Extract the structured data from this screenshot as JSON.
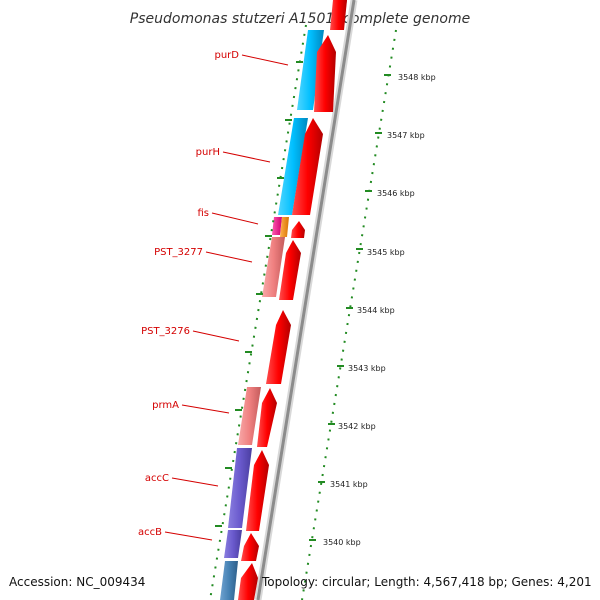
{
  "header": {
    "title": "Pseudomonas stutzeri A1501, complete genome"
  },
  "footer": {
    "accession": "Accession: NC_009434",
    "topology": "Topology: circular; Length: 4,567,418 bp; Genes: 4,201"
  },
  "scale": {
    "labels": [
      "3548 kbp",
      "3547 kbp",
      "3546 kbp",
      "3545 kbp",
      "3544 kbp",
      "3543 kbp",
      "3542 kbp",
      "3541 kbp",
      "3540 kbp"
    ]
  },
  "genes": {
    "labels": [
      "purD",
      "purH",
      "fis",
      "PST_3277",
      "PST_3276",
      "prmA",
      "accC",
      "accB"
    ]
  },
  "colors": {
    "cds_red": "#ff0000",
    "purine_blue": "#00bfff",
    "fis_magenta": "#ff1493",
    "orange": "#ff8c00",
    "pink": "#f08080",
    "accc_purple": "#6a5acd",
    "accb_steel": "#4682b4",
    "backbone": "#999999",
    "tick_green": "#228b22",
    "label_red": "#d40000"
  }
}
